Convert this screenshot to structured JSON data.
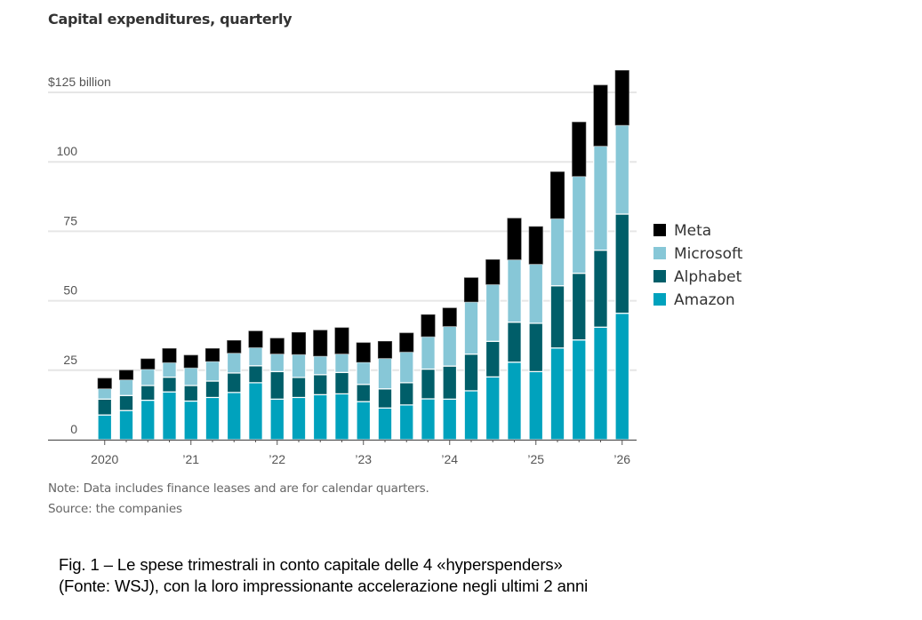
{
  "chart_data": {
    "type": "bar",
    "stacked": true,
    "title": "Capital expenditures, quarterly",
    "xlabel": "",
    "ylabel": "",
    "unit_label": "$125 billion",
    "ylim": [
      0,
      125
    ],
    "y_ticks": [
      {
        "value": 0,
        "label": "0"
      },
      {
        "value": 25,
        "label": "25"
      },
      {
        "value": 50,
        "label": "50"
      },
      {
        "value": 75,
        "label": "75"
      },
      {
        "value": 100,
        "label": "100"
      },
      {
        "value": 125,
        "label": "$125 billion"
      }
    ],
    "grid": true,
    "legend_position": "right",
    "categories": [
      "2020 Q1",
      "2020 Q2",
      "2020 Q3",
      "2020 Q4",
      "2021 Q1",
      "2021 Q2",
      "2021 Q3",
      "2021 Q4",
      "2022 Q1",
      "2022 Q2",
      "2022 Q3",
      "2022 Q4",
      "2023 Q1",
      "2023 Q2",
      "2023 Q3",
      "2023 Q4",
      "2024 Q1",
      "2024 Q2",
      "2024 Q3",
      "2024 Q4",
      "2025 Q1",
      "2025 Q2",
      "2025 Q3",
      "2025 Q4",
      "2026 Q1"
    ],
    "x_tick_labels": [
      {
        "index": 0,
        "label": "2020"
      },
      {
        "index": 4,
        "label": "’21"
      },
      {
        "index": 8,
        "label": "’22"
      },
      {
        "index": 12,
        "label": "’23"
      },
      {
        "index": 16,
        "label": "’24"
      },
      {
        "index": 20,
        "label": "’25"
      },
      {
        "index": 24,
        "label": "’26"
      }
    ],
    "series": [
      {
        "name": "Amazon",
        "color": "#00A2BD",
        "values": [
          8.9,
          10.5,
          14.2,
          17.2,
          13.9,
          15.2,
          17.0,
          20.5,
          14.6,
          15.2,
          16.2,
          16.5,
          13.7,
          11.4,
          12.5,
          14.7,
          14.6,
          17.6,
          22.6,
          27.9,
          24.5,
          33.0,
          35.9,
          40.5,
          45.5
        ]
      },
      {
        "name": "Alphabet",
        "color": "#005E69",
        "values": [
          5.7,
          5.4,
          5.3,
          5.3,
          5.6,
          5.9,
          7.0,
          6.1,
          9.9,
          7.2,
          7.2,
          7.7,
          6.2,
          6.9,
          8.0,
          10.7,
          11.9,
          13.2,
          12.8,
          14.4,
          17.4,
          22.4,
          24.0,
          27.7,
          35.7
        ]
      },
      {
        "name": "Microsoft",
        "color": "#87C7D7",
        "values": [
          3.8,
          5.7,
          5.9,
          5.3,
          6.4,
          7.1,
          7.2,
          6.6,
          6.4,
          8.3,
          6.7,
          6.7,
          8.0,
          11.0,
          11.1,
          11.7,
          14.3,
          18.8,
          20.5,
          22.5,
          21.3,
          24.2,
          34.9,
          37.5,
          32.0
        ]
      },
      {
        "name": "Meta",
        "color": "#000000",
        "values": [
          3.7,
          3.4,
          3.7,
          5.0,
          4.5,
          4.6,
          4.5,
          5.9,
          5.6,
          7.9,
          9.3,
          9.4,
          7.0,
          6.1,
          6.8,
          7.9,
          6.6,
          8.7,
          8.9,
          14.9,
          13.5,
          16.8,
          19.5,
          21.9,
          19.7
        ]
      }
    ],
    "totals_approx": [
      22.1,
      25.0,
      29.1,
      32.8,
      30.4,
      32.8,
      35.7,
      39.1,
      36.5,
      38.6,
      39.4,
      40.3,
      34.9,
      35.4,
      38.4,
      45.0,
      47.4,
      58.3,
      64.8,
      79.7,
      76.7,
      96.4,
      114.3,
      127.6,
      132.9
    ],
    "legend_order": [
      "Meta",
      "Microsoft",
      "Alphabet",
      "Amazon"
    ],
    "note": "Note: Data includes finance leases and are for calendar quarters.",
    "source": "Source: the companies"
  },
  "caption": {
    "line1": "Fig. 1 – Le spese trimestrali in conto capitale delle 4 «hyperspenders»",
    "line2": "(Fonte: WSJ), con la loro impressionante accelerazione negli ultimi 2 anni"
  }
}
